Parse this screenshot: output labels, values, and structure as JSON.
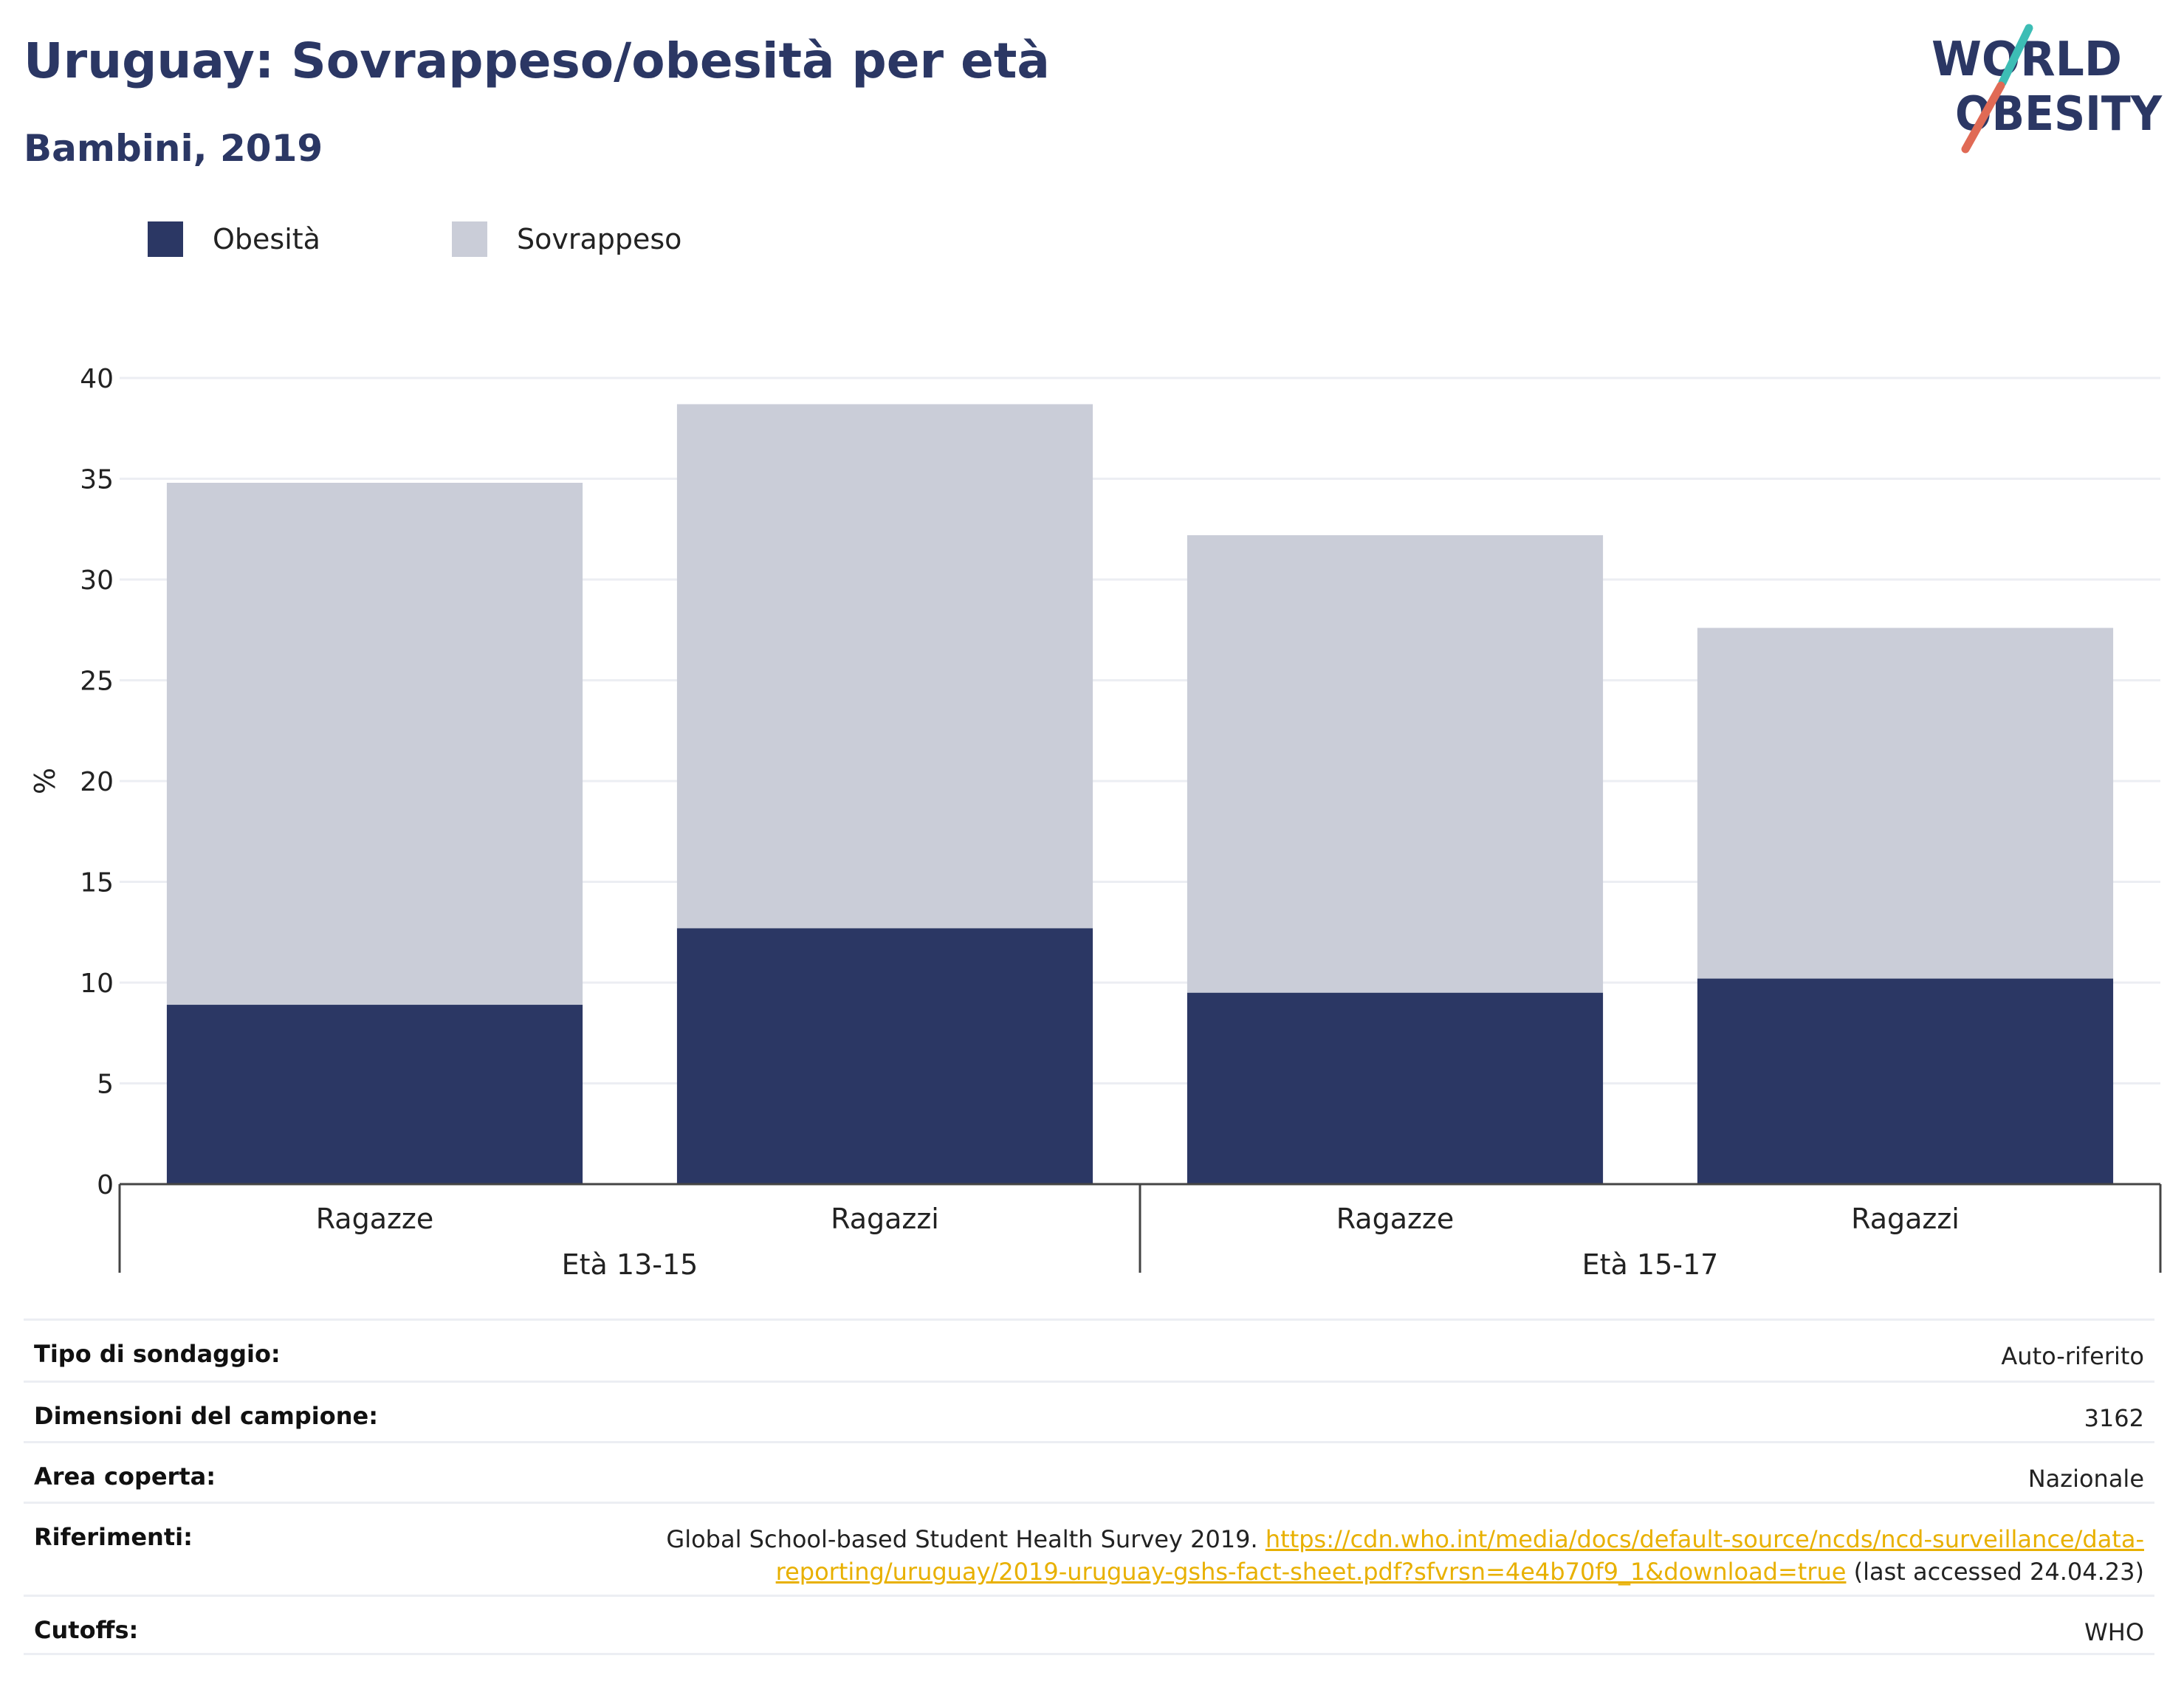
{
  "header": {
    "title": "Uruguay: Sovrappeso/obesità per età",
    "subtitle": "Bambini, 2019"
  },
  "logo": {
    "line1": "WORLD",
    "line2": "OBESITY",
    "colors": {
      "navy": "#2b3764",
      "teal": "#3dbdb5",
      "coral": "#e06a55"
    }
  },
  "colors": {
    "obesity": "#2b3764",
    "overweight": "#cacdd8",
    "grid": "#eceef3",
    "axis": "#444444",
    "link": "#e8b000"
  },
  "chart_data": {
    "type": "bar",
    "stacked": true,
    "ylabel": "%",
    "ylim": [
      0,
      40
    ],
    "yticks": [
      0,
      5,
      10,
      15,
      20,
      25,
      30,
      35,
      40
    ],
    "grid": true,
    "legend_position": "top-left",
    "categories": [
      "Ragazze",
      "Ragazzi",
      "Ragazze",
      "Ragazzi"
    ],
    "groups": [
      {
        "label": "Età 13-15",
        "size": 2
      },
      {
        "label": "Età 15-17",
        "size": 2
      }
    ],
    "series": [
      {
        "name": "Obesità",
        "values": [
          8.9,
          12.7,
          9.5,
          10.2
        ]
      },
      {
        "name": "Sovrappeso",
        "values": [
          25.9,
          26.0,
          22.7,
          17.4
        ]
      }
    ]
  },
  "info": {
    "survey_type": {
      "label": "Tipo di sondaggio:",
      "value": "Auto-riferito"
    },
    "sample_size": {
      "label": "Dimensioni del campione:",
      "value": "3162"
    },
    "area": {
      "label": "Area coperta:",
      "value": "Nazionale"
    },
    "references": {
      "label": "Riferimenti:",
      "text_before": "Global School-based Student Health Survey 2019.",
      "link_line1": "https://cdn.who.int/media/docs/default-source/ncds/ncd-surveillance/data-",
      "link_line2": "reporting/uruguay/2019-uruguay-gshs-fact-sheet.pdf?sfvrsn=4e4b70f9_1&download=true",
      "text_after": "(last accessed 24.04.23)"
    },
    "cutoffs": {
      "label": "Cutoffs:",
      "value": "WHO"
    }
  }
}
